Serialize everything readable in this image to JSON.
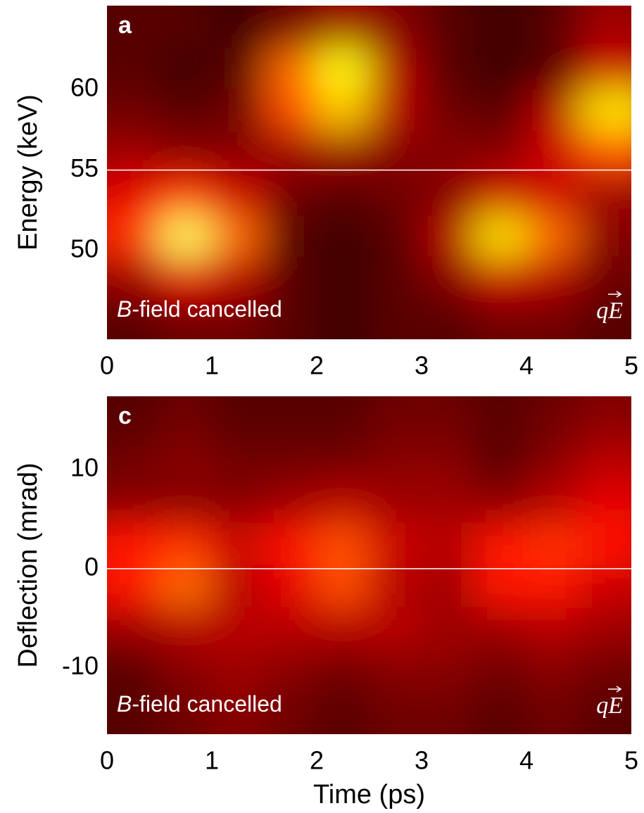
{
  "chart_data": [
    {
      "type": "heatmap",
      "panel_label": "a",
      "ylabel": "Energy (keV)",
      "note_italic": "B",
      "note_rest": "-field cancelled",
      "force_label": "qE",
      "colormap": "hot",
      "hline": 55,
      "xlim": [
        0,
        5
      ],
      "xticks": [
        0,
        1,
        2,
        3,
        4,
        5
      ],
      "ylim": [
        44.5,
        65.2
      ],
      "yticks": [
        50,
        55,
        60
      ],
      "x": [
        0.25,
        0.75,
        1.25,
        1.75,
        2.25,
        2.75,
        3.25,
        3.75,
        4.25,
        4.75
      ],
      "y": [
        63.9,
        61.3,
        58.7,
        56.1,
        53.5,
        50.9,
        48.3,
        45.7
      ],
      "z": [
        [
          0.1,
          0.1,
          0.05,
          0.15,
          0.25,
          0.2,
          0.1,
          0.05,
          0.1,
          0.25
        ],
        [
          0.1,
          0.05,
          0.1,
          0.6,
          0.85,
          0.3,
          0.1,
          0.05,
          0.1,
          0.35
        ],
        [
          0.15,
          0.1,
          0.15,
          0.55,
          0.75,
          0.3,
          0.15,
          0.1,
          0.3,
          0.8
        ],
        [
          0.25,
          0.2,
          0.2,
          0.25,
          0.25,
          0.2,
          0.2,
          0.2,
          0.35,
          0.55
        ],
        [
          0.4,
          0.5,
          0.35,
          0.15,
          0.1,
          0.15,
          0.2,
          0.35,
          0.35,
          0.25
        ],
        [
          0.5,
          0.9,
          0.6,
          0.1,
          0.05,
          0.1,
          0.3,
          0.8,
          0.6,
          0.2
        ],
        [
          0.25,
          0.4,
          0.3,
          0.1,
          0.05,
          0.1,
          0.2,
          0.35,
          0.3,
          0.15
        ],
        [
          0.1,
          0.15,
          0.15,
          0.1,
          0.05,
          0.1,
          0.1,
          0.15,
          0.15,
          0.1
        ]
      ]
    },
    {
      "type": "heatmap",
      "panel_label": "c",
      "ylabel": "Deflection (mrad)",
      "xlabel": "Time (ps)",
      "note_italic": "B",
      "note_rest": "-field cancelled",
      "force_label": "qE",
      "colormap": "hot",
      "hline": 0,
      "xlim": [
        0,
        5
      ],
      "xticks": [
        0,
        1,
        2,
        3,
        4,
        5
      ],
      "ylim": [
        -16.7,
        17.4
      ],
      "yticks": [
        -10,
        0,
        10
      ],
      "x": [
        0.25,
        0.75,
        1.25,
        1.75,
        2.25,
        2.75,
        3.25,
        3.75,
        4.25,
        4.75
      ],
      "y": [
        15.3,
        11.0,
        6.75,
        2.5,
        -1.8,
        -6.0,
        -10.3,
        -14.6
      ],
      "z": [
        [
          0.1,
          0.15,
          0.1,
          0.1,
          0.1,
          0.15,
          0.15,
          0.1,
          0.15,
          0.2
        ],
        [
          0.15,
          0.2,
          0.15,
          0.15,
          0.15,
          0.2,
          0.2,
          0.1,
          0.2,
          0.3
        ],
        [
          0.2,
          0.2,
          0.2,
          0.25,
          0.3,
          0.25,
          0.25,
          0.2,
          0.3,
          0.4
        ],
        [
          0.45,
          0.5,
          0.35,
          0.45,
          0.55,
          0.35,
          0.3,
          0.45,
          0.5,
          0.45
        ],
        [
          0.45,
          0.6,
          0.3,
          0.4,
          0.55,
          0.3,
          0.25,
          0.45,
          0.45,
          0.35
        ],
        [
          0.25,
          0.3,
          0.3,
          0.3,
          0.3,
          0.3,
          0.25,
          0.25,
          0.3,
          0.25
        ],
        [
          0.1,
          0.2,
          0.25,
          0.2,
          0.15,
          0.2,
          0.2,
          0.15,
          0.2,
          0.15
        ],
        [
          0.1,
          0.15,
          0.2,
          0.15,
          0.1,
          0.15,
          0.15,
          0.1,
          0.15,
          0.1
        ]
      ]
    }
  ]
}
